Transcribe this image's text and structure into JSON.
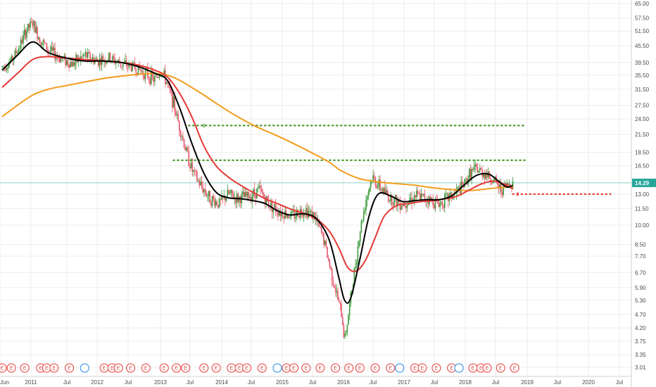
{
  "chart_data": {
    "type": "candlestick",
    "scale": "log",
    "grid": true,
    "x_axis_labels": [
      "Jun",
      "2011",
      "Jul",
      "2012",
      "Jul",
      "2013",
      "Jul",
      "2014",
      "Jul",
      "2015",
      "Jul",
      "2016",
      "Jul",
      "2017",
      "Jul",
      "2018",
      "Jul",
      "2019",
      "Jul",
      "2020",
      "Jul"
    ],
    "y_axis_labels": [
      "65.00",
      "57.50",
      "51.50",
      "45.50",
      "39.50",
      "35.50",
      "31.50",
      "27.50",
      "24.50",
      "21.50",
      "18.50",
      "16.50",
      "14.29",
      "13.00",
      "11.50",
      "10.00",
      "8.50",
      "7.70",
      "6.70",
      "5.90",
      "5.30",
      "4.70",
      "4.20",
      "3.75",
      "3.35",
      "3.01"
    ],
    "y_range": [
      2.9,
      68
    ],
    "x_range": [
      2010.45,
      2020.75
    ],
    "last_price": {
      "label": "14.29",
      "value": 14.29,
      "color": "#26a69a"
    },
    "close_series": {
      "x": [
        2010.45,
        2010.6,
        2010.75,
        2010.85,
        2010.95,
        2011.05,
        2011.2,
        2011.4,
        2011.6,
        2011.8,
        2012.0,
        2012.2,
        2012.4,
        2012.6,
        2012.8,
        2012.95,
        2013.05,
        2013.15,
        2013.25,
        2013.35,
        2013.45,
        2013.55,
        2013.65,
        2013.75,
        2013.85,
        2014.0,
        2014.15,
        2014.3,
        2014.5,
        2014.65,
        2014.8,
        2015.0,
        2015.2,
        2015.4,
        2015.55,
        2015.7,
        2015.8,
        2015.9,
        2016.0,
        2016.05,
        2016.1,
        2016.2,
        2016.3,
        2016.4,
        2016.5,
        2016.6,
        2016.8,
        2017.0,
        2017.2,
        2017.4,
        2017.6,
        2017.8,
        2018.0,
        2018.1,
        2018.2,
        2018.35,
        2018.5,
        2018.6,
        2018.7,
        2018.8
      ],
      "values": [
        38,
        40,
        46,
        52,
        55,
        49,
        44,
        41,
        39,
        42,
        40,
        41,
        39,
        38,
        36,
        34,
        37,
        33,
        28,
        23,
        19,
        16,
        14.5,
        13.5,
        12.5,
        12.0,
        13.0,
        12.5,
        12.8,
        13.5,
        12.0,
        11.2,
        10.8,
        11.5,
        10.8,
        9.0,
        7.2,
        5.8,
        4.7,
        3.8,
        4.5,
        6.5,
        9.5,
        12.5,
        15.0,
        14.0,
        12.5,
        12.0,
        12.8,
        12.5,
        12.0,
        12.8,
        14.0,
        15.5,
        16.0,
        15.5,
        14.5,
        13.5,
        14.0,
        14.29
      ]
    },
    "ma_fast": {
      "name": "",
      "color": "#000000",
      "x": [
        2010.45,
        2010.7,
        2010.95,
        2011.2,
        2011.5,
        2011.8,
        2012.1,
        2012.4,
        2012.7,
        2012.95,
        2013.15,
        2013.35,
        2013.55,
        2013.75,
        2013.95,
        2014.15,
        2014.35,
        2014.55,
        2014.75,
        2014.95,
        2015.15,
        2015.4,
        2015.6,
        2015.8,
        2015.95,
        2016.05,
        2016.15,
        2016.3,
        2016.45,
        2016.6,
        2016.8,
        2017.0,
        2017.2,
        2017.4,
        2017.6,
        2017.8,
        2018.0,
        2018.2,
        2018.4,
        2018.55,
        2018.7,
        2018.8
      ],
      "values": [
        37,
        42,
        47,
        43,
        41,
        40,
        40,
        39.5,
        38,
        36,
        34,
        27,
        20,
        15.5,
        13.2,
        12.6,
        12.5,
        12.3,
        12.0,
        11.3,
        10.9,
        11.0,
        10.5,
        8.8,
        6.5,
        5.3,
        5.4,
        7.5,
        10.8,
        13.0,
        12.8,
        12.2,
        12.3,
        12.4,
        12.4,
        12.8,
        14.0,
        15.2,
        15.4,
        14.6,
        13.8,
        14.0
      ]
    },
    "ma_medium": {
      "name": "",
      "color": "#e53935",
      "x": [
        2010.45,
        2010.7,
        2010.95,
        2011.2,
        2011.5,
        2011.8,
        2012.1,
        2012.4,
        2012.7,
        2012.95,
        2013.15,
        2013.35,
        2013.55,
        2013.75,
        2013.95,
        2014.15,
        2014.35,
        2014.55,
        2014.75,
        2014.95,
        2015.15,
        2015.4,
        2015.6,
        2015.8,
        2015.95,
        2016.1,
        2016.25,
        2016.4,
        2016.55,
        2016.7,
        2016.9,
        2017.1,
        2017.3,
        2017.5,
        2017.7,
        2017.9,
        2018.1,
        2018.3,
        2018.5,
        2018.7,
        2018.8
      ],
      "values": [
        32,
        36,
        40.5,
        41.5,
        41,
        40.5,
        40,
        39.5,
        38.5,
        37,
        35,
        30.5,
        25,
        19.5,
        16.5,
        15.0,
        14.0,
        13.2,
        12.5,
        12.0,
        11.5,
        11.0,
        10.5,
        9.5,
        8.3,
        7.0,
        6.8,
        7.5,
        9.0,
        10.8,
        11.8,
        12.0,
        12.2,
        12.3,
        12.5,
        12.8,
        13.5,
        14.2,
        14.5,
        14.0,
        13.6
      ]
    },
    "ma_slow": {
      "name": "",
      "color": "#f29c1c",
      "x": [
        2010.45,
        2010.7,
        2010.95,
        2011.2,
        2011.5,
        2011.8,
        2012.1,
        2012.4,
        2012.7,
        2012.95,
        2013.15,
        2013.35,
        2013.55,
        2013.75,
        2014.0,
        2014.3,
        2014.6,
        2014.9,
        2015.2,
        2015.5,
        2015.8,
        2016.0,
        2016.3,
        2016.6,
        2016.9,
        2017.2,
        2017.5,
        2017.8,
        2018.1,
        2018.4,
        2018.7,
        2018.8
      ],
      "values": [
        25,
        27.5,
        30,
        31.5,
        32.5,
        33.5,
        34.5,
        35.2,
        35.8,
        36,
        35.5,
        34,
        32,
        30,
        27.5,
        25,
        23,
        21.5,
        20,
        18.5,
        17,
        15.8,
        14.8,
        14.4,
        14.2,
        14.0,
        13.7,
        13.5,
        13.4,
        13.6,
        13.8,
        13.8
      ]
    },
    "levels": [
      {
        "value": 23.2,
        "x_start": 2013.5,
        "x_end": 2019.0,
        "color": "#4a9a2a",
        "tag": "0",
        "tag_x": 2013.75
      },
      {
        "value": 17.3,
        "x_start": 2013.25,
        "x_end": 2019.0,
        "color": "#4a9a2a",
        "tag": "0",
        "tag_x": 2013.55
      },
      {
        "value": 13.0,
        "x_start": 2018.8,
        "x_end": 2020.4,
        "color": "#e53935",
        "tag": "0",
        "tag_x": 2018.88
      }
    ],
    "events": [
      {
        "x": 2010.45,
        "label": "E",
        "color": "#e53935"
      },
      {
        "x": 2010.6,
        "label": "E",
        "color": "#e53935"
      },
      {
        "x": 2010.82,
        "label": "E",
        "color": "#e53935"
      },
      {
        "x": 2011.08,
        "label": "E",
        "color": "#e53935"
      },
      {
        "x": 2011.18,
        "label": "E",
        "color": "#e53935"
      },
      {
        "x": 2011.3,
        "label": "E",
        "color": "#e53935"
      },
      {
        "x": 2011.55,
        "label": "E",
        "color": "#e53935"
      },
      {
        "x": 2011.8,
        "label": "",
        "color": "#1e88e5"
      },
      {
        "x": 2012.12,
        "label": "E",
        "color": "#e53935"
      },
      {
        "x": 2012.25,
        "label": "E",
        "color": "#e53935"
      },
      {
        "x": 2012.35,
        "label": "E",
        "color": "#e53935"
      },
      {
        "x": 2012.55,
        "label": "E",
        "color": "#e53935"
      },
      {
        "x": 2012.8,
        "label": "E",
        "color": "#e53935"
      },
      {
        "x": 2013.1,
        "label": "E",
        "color": "#e53935"
      },
      {
        "x": 2013.3,
        "label": "E",
        "color": "#e53935"
      },
      {
        "x": 2013.45,
        "label": "E",
        "color": "#e53935"
      },
      {
        "x": 2013.75,
        "label": "E",
        "color": "#e53935"
      },
      {
        "x": 2013.95,
        "label": "E",
        "color": "#e53935"
      },
      {
        "x": 2014.2,
        "label": "E",
        "color": "#e53935"
      },
      {
        "x": 2014.33,
        "label": "E",
        "color": "#e53935"
      },
      {
        "x": 2014.45,
        "label": "E",
        "color": "#e53935"
      },
      {
        "x": 2014.7,
        "label": "E",
        "color": "#e53935"
      },
      {
        "x": 2014.95,
        "label": "",
        "color": "#1e88e5"
      },
      {
        "x": 2015.1,
        "label": "E",
        "color": "#e53935"
      },
      {
        "x": 2015.22,
        "label": "E",
        "color": "#e53935"
      },
      {
        "x": 2015.42,
        "label": "E",
        "color": "#e53935"
      },
      {
        "x": 2015.65,
        "label": "E",
        "color": "#e53935"
      },
      {
        "x": 2015.9,
        "label": "E",
        "color": "#e53935"
      },
      {
        "x": 2016.12,
        "label": "E",
        "color": "#e53935"
      },
      {
        "x": 2016.3,
        "label": "E",
        "color": "#e53935"
      },
      {
        "x": 2016.55,
        "label": "E",
        "color": "#e53935"
      },
      {
        "x": 2016.8,
        "label": "E",
        "color": "#e53935"
      },
      {
        "x": 2016.95,
        "label": "",
        "color": "#1e88e5"
      },
      {
        "x": 2017.2,
        "label": "E",
        "color": "#e53935"
      },
      {
        "x": 2017.32,
        "label": "E",
        "color": "#e53935"
      },
      {
        "x": 2017.55,
        "label": "E",
        "color": "#e53935"
      },
      {
        "x": 2017.8,
        "label": "E",
        "color": "#e53935"
      },
      {
        "x": 2017.92,
        "label": "",
        "color": "#1e88e5"
      },
      {
        "x": 2018.15,
        "label": "E",
        "color": "#e53935"
      },
      {
        "x": 2018.28,
        "label": "E",
        "color": "#e53935"
      },
      {
        "x": 2018.38,
        "label": "E",
        "color": "#e53935"
      },
      {
        "x": 2018.6,
        "label": "E",
        "color": "#e53935"
      },
      {
        "x": 2018.83,
        "label": "E",
        "color": "#e53935"
      }
    ]
  }
}
